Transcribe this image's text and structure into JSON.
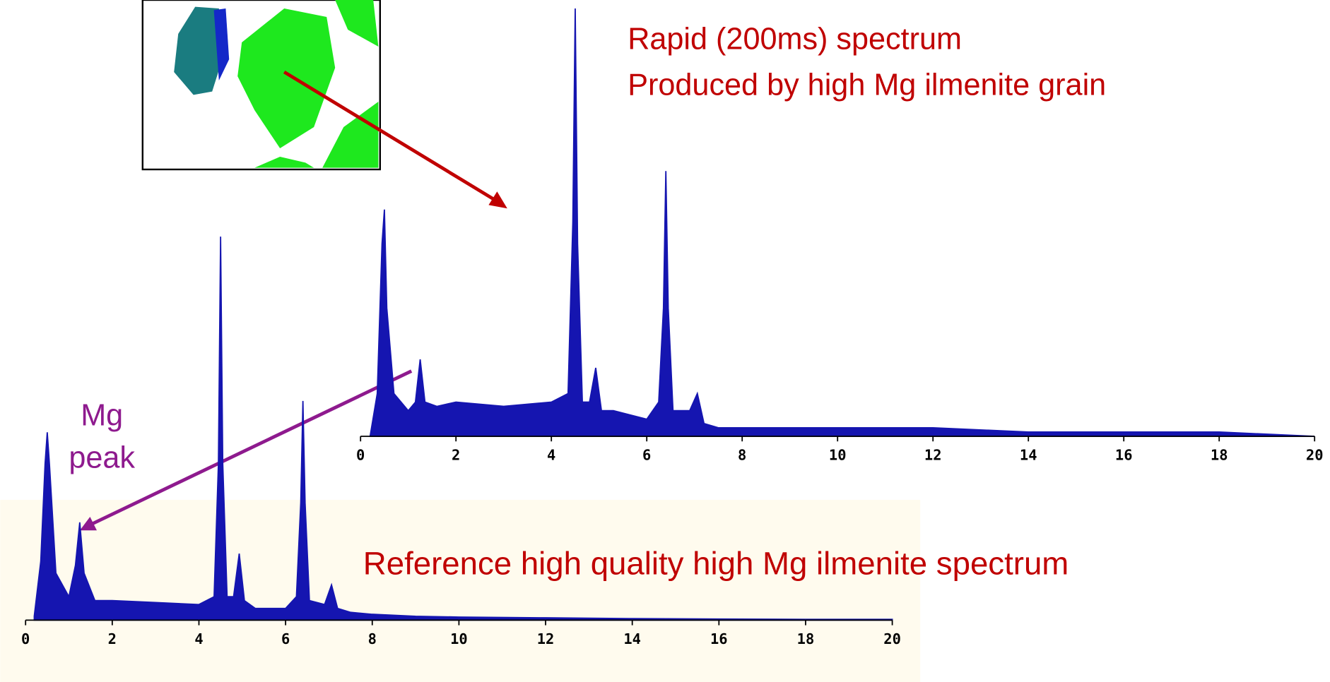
{
  "chart_data": [
    {
      "type": "area",
      "color": "#1515b0",
      "x": [
        0.2,
        0.35,
        0.45,
        0.5,
        0.55,
        0.7,
        1.0,
        1.15,
        1.25,
        1.35,
        1.6,
        2,
        3,
        4,
        4.35,
        4.45,
        4.5,
        4.55,
        4.65,
        4.8,
        4.93,
        5.05,
        5.3,
        6,
        6.25,
        6.35,
        6.4,
        6.45,
        6.55,
        6.9,
        7.06,
        7.2,
        7.5,
        8,
        9,
        10,
        12,
        14,
        16,
        18,
        20
      ],
      "values": [
        0,
        10,
        45,
        53,
        30,
        10,
        6,
        8,
        18,
        8,
        7,
        8,
        7,
        8,
        10,
        50,
        100,
        45,
        8,
        8,
        16,
        6,
        6,
        4,
        8,
        30,
        62,
        30,
        6,
        6,
        10,
        3,
        2,
        2,
        2,
        2,
        2,
        1,
        1,
        1,
        0
      ],
      "xlim": [
        0,
        20
      ],
      "ylim": [
        0,
        100
      ],
      "xticks": [
        0,
        2,
        4,
        6,
        8,
        10,
        12,
        14,
        16,
        18,
        20
      ]
    },
    {
      "type": "area",
      "color": "#1515b0",
      "x": [
        0.2,
        0.35,
        0.45,
        0.5,
        0.55,
        0.7,
        1.0,
        1.15,
        1.25,
        1.35,
        1.6,
        2,
        3,
        4,
        4.35,
        4.45,
        4.5,
        4.55,
        4.65,
        4.8,
        4.93,
        5.05,
        5.3,
        6,
        6.25,
        6.35,
        6.4,
        6.45,
        6.55,
        6.9,
        7.06,
        7.2,
        7.5,
        8,
        9,
        10,
        12,
        14,
        16,
        18,
        20
      ],
      "values": [
        1,
        15,
        40,
        48,
        40,
        12,
        6,
        14,
        25,
        12,
        5,
        5,
        4.5,
        4,
        6,
        40,
        98,
        40,
        6,
        6,
        17,
        5,
        3,
        3,
        6,
        30,
        56,
        30,
        5,
        4,
        9,
        3,
        2,
        1.5,
        1,
        0.8,
        0.6,
        0.4,
        0.3,
        0.2,
        0.2
      ],
      "xlim": [
        0,
        20
      ],
      "ylim": [
        0,
        100
      ],
      "xticks": [
        0,
        2,
        4,
        6,
        8,
        10,
        12,
        14,
        16,
        18,
        20
      ]
    }
  ],
  "annotations": {
    "rapid": "Rapid (200ms) spectrum",
    "produced": "Produced by high Mg ilmenite grain",
    "mg": "Mg",
    "peak": "peak",
    "reference": "Reference high quality high Mg ilmenite spectrum"
  }
}
